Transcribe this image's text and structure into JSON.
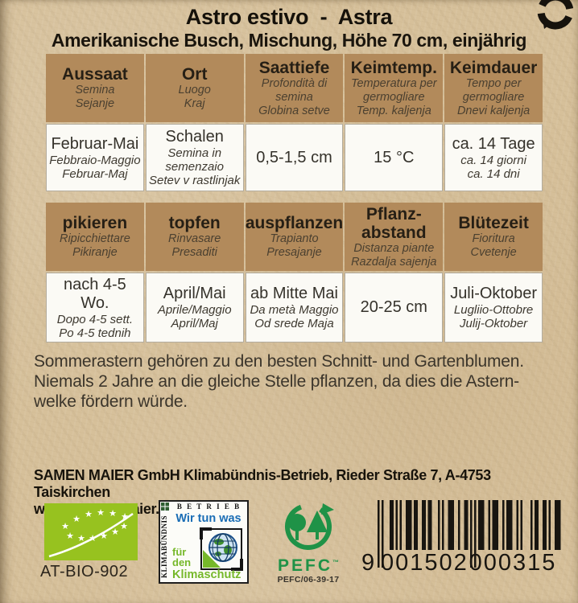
{
  "header": {
    "title": "Astro estivo  -  Astra",
    "subtitle": "Amerikanische Busch, Mischung, Höhe 70 cm, einjährig"
  },
  "table1": {
    "cols": [
      {
        "h": "Aussaat",
        "h2": "Semina",
        "h3": "Sejanje",
        "b": "Februar-Mai",
        "b2": "Febbraio-Maggio",
        "b3": "Februar-Maj"
      },
      {
        "h": "Ort",
        "h2": "Luogo",
        "h3": "Kraj",
        "b": "Schalen",
        "b2": "Semina in semenzaio",
        "b3": "Setev v rastlinjak"
      },
      {
        "h": "Saattiefe",
        "h2": "Profondità di semina",
        "h3": "Globina setve",
        "b": "0,5-1,5 cm",
        "b2": "",
        "b3": ""
      },
      {
        "h": "Keimtemp.",
        "h2": "Temperatura per germogliare",
        "h3": "Temp. kaljenja",
        "b": "15 °C",
        "b2": "",
        "b3": ""
      },
      {
        "h": "Keimdauer",
        "h2": "Tempo per germogliare",
        "h3": "Dnevi kaljenja",
        "b": "ca. 14 Tage",
        "b2": "ca. 14 giorni",
        "b3": "ca. 14 dni"
      }
    ]
  },
  "table2": {
    "cols": [
      {
        "h": "pikieren",
        "h2": "Ripicchiettare",
        "h3": "Pikiranje",
        "b": "nach 4-5 Wo.",
        "b2": "Dopo 4-5 sett.",
        "b3": "Po 4-5 tednih"
      },
      {
        "h": "topfen",
        "h2": "Rinvasare",
        "h3": "Presaditi",
        "b": "April/Mai",
        "b2": "Aprile/Maggio",
        "b3": "April/Maj"
      },
      {
        "h": "auspflanzen",
        "h2": "Trapianto",
        "h3": "Presajanje",
        "b": "ab Mitte Mai",
        "b2": "Da metà Maggio",
        "b3": "Od srede Maja"
      },
      {
        "h": "Pflanz-abstand",
        "h2": "Distanza piante",
        "h3": "Razdalja sajenja",
        "b": "20-25 cm",
        "b2": "",
        "b3": ""
      },
      {
        "h": "Blütezeit",
        "h2": "Fioritura",
        "h3": "Cvetenje",
        "b": "Juli-Oktober",
        "b2": "Lugliio-Ottobre",
        "b3": "Julij-Oktober"
      }
    ]
  },
  "description": {
    "lines": [
      "Sommerastern gehören zu den besten Schnitt- und Gartenblumen.",
      "Niemals 2 Jahre an die gleiche Stelle pflanzen, da dies die Astern-",
      "welke fördern würde."
    ]
  },
  "footer": {
    "company": "SAMEN MAIER GmbH Klimabündnis-Betrieb, Rieder Straße 7, A-4753 Taiskirchen",
    "website": "www.samen-maier.at"
  },
  "logos": {
    "eu_bio": {
      "code": "AT-BIO-902",
      "green": "#97c21f"
    },
    "klimabuendnis": {
      "betrieb": "B E T R I E B",
      "side": "KLIMABÜNDNIS",
      "slogan": "Wir tun was",
      "fuer": "für",
      "den": "den",
      "klimaschutz": "Klimaschutz",
      "blue": "#1a6db5",
      "green": "#76b82a"
    },
    "pefc": {
      "name": "PEFC",
      "trademark": "™",
      "cert_code": "PEFC/06-39-17",
      "green": "#1f9247"
    },
    "barcode": {
      "ean": "9001502000315",
      "digit_left": "9",
      "digits_group1": "001502",
      "digits_group2": "000315"
    }
  }
}
